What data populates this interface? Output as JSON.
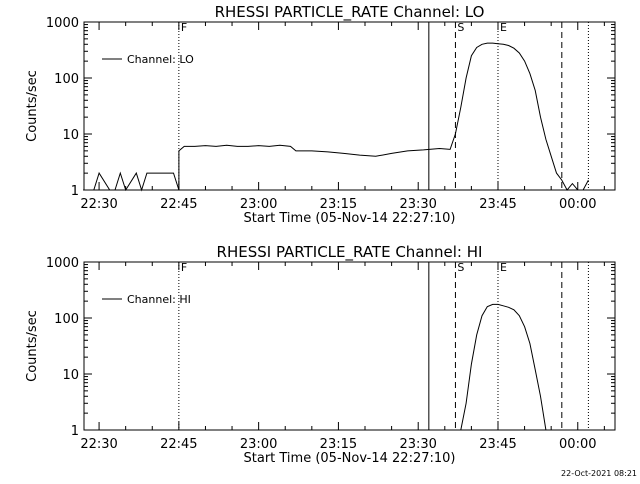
{
  "footer": {
    "timestamp": "22-Oct-2021 08:21"
  },
  "chart_data": [
    {
      "type": "line",
      "title": "RHESSI PARTICLE_RATE Channel: LO",
      "xlabel": "Start Time (05-Nov-14 22:27:10)",
      "ylabel": "Counts/sec",
      "yscale": "log",
      "xlim": [
        "22:27:10",
        "00:07:00"
      ],
      "ylim": [
        1,
        1000
      ],
      "x_ticks": [
        "22:30",
        "22:45",
        "23:00",
        "23:15",
        "23:30",
        "23:45",
        "00:00"
      ],
      "y_ticks": [
        "1",
        "10",
        "100",
        "1000"
      ],
      "legend": {
        "position": "top-left",
        "entries": [
          "Channel: LO"
        ]
      },
      "markers": [
        {
          "label": "F",
          "time": "22:45",
          "style": "dotted"
        },
        {
          "label": "",
          "time": "23:32",
          "style": "solid"
        },
        {
          "label": "S",
          "time": "23:37",
          "style": "dashed"
        },
        {
          "label": "E",
          "time": "23:45",
          "style": "dotted"
        },
        {
          "label": "",
          "time": "23:57",
          "style": "dashed"
        },
        {
          "label": "",
          "time": "00:02",
          "style": "dotted"
        }
      ],
      "series": [
        {
          "name": "Channel: LO",
          "x": [
            "22:27",
            "22:28",
            "22:29",
            "22:30",
            "22:32",
            "22:33",
            "22:34",
            "22:35",
            "22:37",
            "22:38",
            "22:39",
            "22:40",
            "22:41",
            "22:42",
            "22:43",
            "22:44",
            "22:45",
            "22:45",
            "22:46",
            "22:48",
            "22:50",
            "22:52",
            "22:54",
            "22:56",
            "22:58",
            "23:00",
            "23:02",
            "23:04",
            "23:06",
            "23:07",
            "23:10",
            "23:13",
            "23:16",
            "23:19",
            "23:22",
            "23:25",
            "23:28",
            "23:31",
            "23:34",
            "23:36",
            "23:37",
            "23:38",
            "23:39",
            "23:40",
            "23:41",
            "23:42",
            "23:43",
            "23:44",
            "23:45",
            "23:46",
            "23:47",
            "23:48",
            "23:49",
            "23:50",
            "23:51",
            "23:52",
            "23:53",
            "23:54",
            "23:55",
            "23:56",
            "23:57",
            "23:58",
            "23:59",
            "00:00",
            "00:01",
            "00:02"
          ],
          "y": [
            1,
            1,
            1,
            2,
            1,
            1,
            2,
            1,
            2,
            1,
            2,
            2,
            2,
            2,
            2,
            2,
            1,
            5,
            6,
            6,
            6.2,
            6,
            6.3,
            6,
            6,
            6.2,
            6,
            6.3,
            6,
            5,
            5,
            4.8,
            4.5,
            4.2,
            4,
            4.5,
            5,
            5.2,
            5.5,
            5.3,
            10,
            30,
            100,
            250,
            350,
            400,
            420,
            420,
            410,
            400,
            380,
            340,
            280,
            200,
            120,
            60,
            20,
            8,
            4,
            2,
            1.5,
            1,
            1.3,
            1,
            1,
            1.5
          ]
        }
      ]
    },
    {
      "type": "line",
      "title": "RHESSI PARTICLE_RATE Channel: HI",
      "xlabel": "Start Time (05-Nov-14 22:27:10)",
      "ylabel": "Counts/sec",
      "yscale": "log",
      "xlim": [
        "22:27:10",
        "00:07:00"
      ],
      "ylim": [
        1,
        1000
      ],
      "x_ticks": [
        "22:30",
        "22:45",
        "23:00",
        "23:15",
        "23:30",
        "23:45",
        "00:00"
      ],
      "y_ticks": [
        "1",
        "10",
        "100",
        "1000"
      ],
      "legend": {
        "position": "top-left",
        "entries": [
          "Channel: HI"
        ]
      },
      "markers": [
        {
          "label": "F",
          "time": "22:45",
          "style": "dotted"
        },
        {
          "label": "",
          "time": "23:32",
          "style": "solid"
        },
        {
          "label": "S",
          "time": "23:37",
          "style": "dashed"
        },
        {
          "label": "E",
          "time": "23:45",
          "style": "dotted"
        },
        {
          "label": "",
          "time": "23:57",
          "style": "dashed"
        },
        {
          "label": "",
          "time": "00:02",
          "style": "dotted"
        }
      ],
      "series": [
        {
          "name": "Channel: HI",
          "x": [
            "23:38",
            "23:39",
            "23:40",
            "23:41",
            "23:42",
            "23:43",
            "23:44",
            "23:45",
            "23:46",
            "23:47",
            "23:48",
            "23:49",
            "23:50",
            "23:51",
            "23:52",
            "23:53",
            "23:54"
          ],
          "y": [
            1,
            3,
            15,
            50,
            110,
            160,
            175,
            175,
            165,
            155,
            140,
            110,
            70,
            35,
            12,
            4,
            1
          ]
        }
      ]
    }
  ]
}
